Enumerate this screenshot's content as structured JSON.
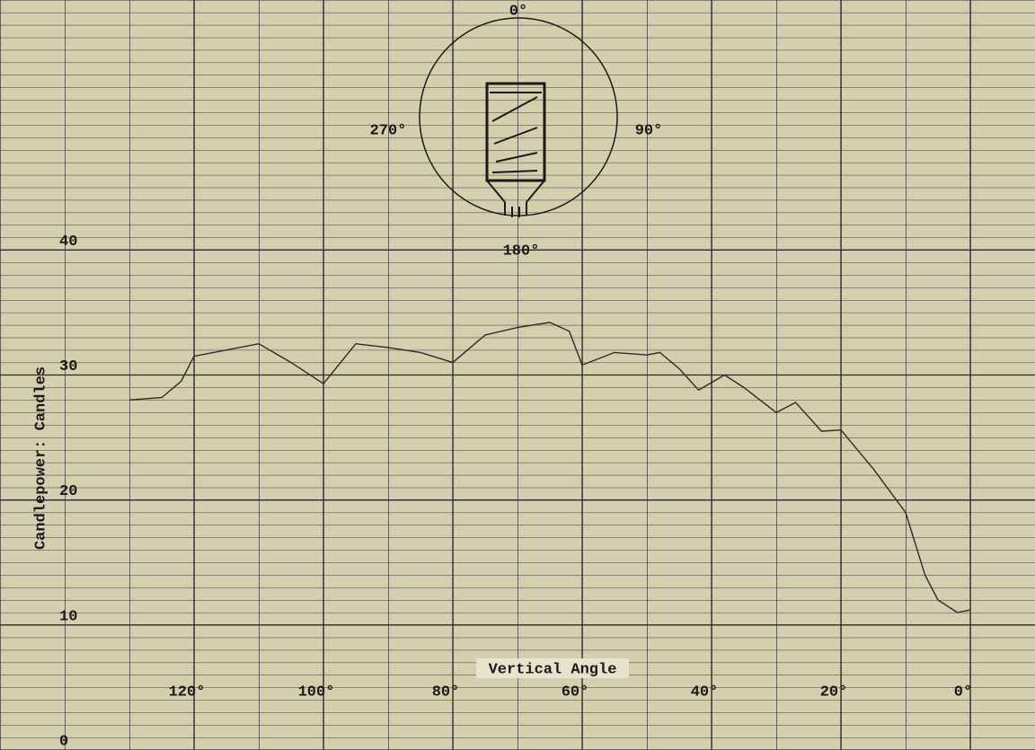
{
  "chart_data": {
    "type": "line",
    "x_label": "Vertical Angle",
    "y_label": "Candlepower: Candles",
    "annotations": [
      "0°",
      "90°",
      "180°",
      "270°"
    ],
    "xlim": [
      150,
      -10
    ],
    "ylim": [
      0,
      60
    ],
    "xticks": [
      {
        "value": 120,
        "label": "120°"
      },
      {
        "value": 100,
        "label": "100°"
      },
      {
        "value": 80,
        "label": "80°"
      },
      {
        "value": 60,
        "label": "60°"
      },
      {
        "value": 40,
        "label": "40°"
      },
      {
        "value": 20,
        "label": "20°"
      },
      {
        "value": 0,
        "label": "0°"
      }
    ],
    "yticks": [
      0,
      10,
      20,
      30,
      40
    ],
    "grid": true,
    "x": [
      130,
      125,
      122,
      120,
      115,
      110,
      105,
      100,
      95,
      90,
      85,
      80,
      75,
      70,
      65,
      62,
      60,
      55,
      50,
      48,
      45,
      42,
      38,
      35,
      30,
      27,
      23,
      20,
      15,
      10,
      7,
      5,
      2,
      0
    ],
    "series": [
      {
        "color": "#2b2b2b",
        "values": [
          28,
          28.2,
          29.5,
          31.5,
          32,
          32.5,
          31,
          29.3,
          32.5,
          32.2,
          31.8,
          31,
          33.2,
          33.8,
          34.2,
          33.5,
          30.8,
          31.8,
          31.6,
          31.8,
          30.5,
          28.8,
          30,
          29,
          27,
          27.8,
          25.5,
          25.6,
          22.5,
          19,
          14,
          12,
          11,
          11.2
        ]
      }
    ]
  }
}
